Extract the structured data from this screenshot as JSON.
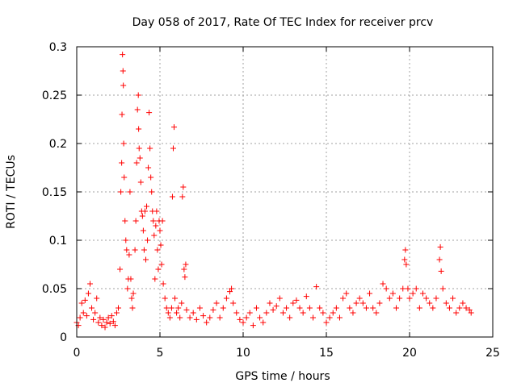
{
  "chart_data": {
    "type": "scatter",
    "title": "Day 058 of 2017, Rate Of TEC Index for receiver prcv",
    "xlabel": "GPS time / hours",
    "ylabel": "ROTI / TECUs",
    "xlim": [
      0,
      25
    ],
    "ylim": [
      0,
      0.3
    ],
    "x_ticks": [
      0,
      5,
      10,
      15,
      20,
      25
    ],
    "x_tick_labels": [
      "0",
      "5",
      "10",
      "15",
      "20",
      "25"
    ],
    "y_ticks": [
      0,
      0.05,
      0.1,
      0.15,
      0.2,
      0.25,
      0.3
    ],
    "y_tick_labels": [
      "0",
      "0.05",
      "0.1",
      "0.15",
      "0.2",
      "0.25",
      "0.3"
    ],
    "grid": true,
    "marker": "+",
    "color": "#ff0000",
    "series": [
      {
        "name": "ROTI",
        "points": [
          [
            0.0,
            0.015
          ],
          [
            0.1,
            0.012
          ],
          [
            0.2,
            0.02
          ],
          [
            0.3,
            0.035
          ],
          [
            0.4,
            0.025
          ],
          [
            0.5,
            0.038
          ],
          [
            0.6,
            0.022
          ],
          [
            0.7,
            0.045
          ],
          [
            0.8,
            0.055
          ],
          [
            0.9,
            0.03
          ],
          [
            1.0,
            0.018
          ],
          [
            1.1,
            0.025
          ],
          [
            1.2,
            0.04
          ],
          [
            1.3,
            0.015
          ],
          [
            1.4,
            0.02
          ],
          [
            1.5,
            0.012
          ],
          [
            1.6,
            0.018
          ],
          [
            1.7,
            0.01
          ],
          [
            1.8,
            0.015
          ],
          [
            1.9,
            0.02
          ],
          [
            2.0,
            0.014
          ],
          [
            2.1,
            0.022
          ],
          [
            2.2,
            0.016
          ],
          [
            2.3,
            0.012
          ],
          [
            2.4,
            0.025
          ],
          [
            2.5,
            0.03
          ],
          [
            2.6,
            0.07
          ],
          [
            2.65,
            0.15
          ],
          [
            2.7,
            0.18
          ],
          [
            2.72,
            0.23
          ],
          [
            2.75,
            0.292
          ],
          [
            2.78,
            0.275
          ],
          [
            2.8,
            0.26
          ],
          [
            2.82,
            0.2
          ],
          [
            2.85,
            0.165
          ],
          [
            2.9,
            0.12
          ],
          [
            2.95,
            0.1
          ],
          [
            3.0,
            0.09
          ],
          [
            3.05,
            0.05
          ],
          [
            3.1,
            0.06
          ],
          [
            3.15,
            0.085
          ],
          [
            3.2,
            0.15
          ],
          [
            3.25,
            0.06
          ],
          [
            3.3,
            0.04
          ],
          [
            3.35,
            0.03
          ],
          [
            3.4,
            0.045
          ],
          [
            3.5,
            0.09
          ],
          [
            3.55,
            0.12
          ],
          [
            3.6,
            0.18
          ],
          [
            3.65,
            0.235
          ],
          [
            3.7,
            0.25
          ],
          [
            3.72,
            0.215
          ],
          [
            3.75,
            0.195
          ],
          [
            3.8,
            0.185
          ],
          [
            3.85,
            0.16
          ],
          [
            3.9,
            0.13
          ],
          [
            3.95,
            0.125
          ],
          [
            4.0,
            0.11
          ],
          [
            4.05,
            0.09
          ],
          [
            4.1,
            0.13
          ],
          [
            4.15,
            0.08
          ],
          [
            4.2,
            0.135
          ],
          [
            4.25,
            0.1
          ],
          [
            4.3,
            0.175
          ],
          [
            4.35,
            0.232
          ],
          [
            4.4,
            0.195
          ],
          [
            4.45,
            0.165
          ],
          [
            4.5,
            0.15
          ],
          [
            4.55,
            0.13
          ],
          [
            4.6,
            0.12
          ],
          [
            4.65,
            0.105
          ],
          [
            4.7,
            0.06
          ],
          [
            4.75,
            0.115
          ],
          [
            4.8,
            0.13
          ],
          [
            4.85,
            0.09
          ],
          [
            4.9,
            0.07
          ],
          [
            4.95,
            0.12
          ],
          [
            5.0,
            0.11
          ],
          [
            5.05,
            0.095
          ],
          [
            5.1,
            0.075
          ],
          [
            5.15,
            0.12
          ],
          [
            5.2,
            0.055
          ],
          [
            5.3,
            0.04
          ],
          [
            5.4,
            0.03
          ],
          [
            5.5,
            0.025
          ],
          [
            5.6,
            0.02
          ],
          [
            5.7,
            0.03
          ],
          [
            5.75,
            0.145
          ],
          [
            5.8,
            0.195
          ],
          [
            5.85,
            0.217
          ],
          [
            5.9,
            0.04
          ],
          [
            6.0,
            0.025
          ],
          [
            6.1,
            0.03
          ],
          [
            6.2,
            0.02
          ],
          [
            6.3,
            0.035
          ],
          [
            6.35,
            0.145
          ],
          [
            6.4,
            0.155
          ],
          [
            6.45,
            0.07
          ],
          [
            6.5,
            0.062
          ],
          [
            6.55,
            0.075
          ],
          [
            6.6,
            0.028
          ],
          [
            6.8,
            0.02
          ],
          [
            7.0,
            0.025
          ],
          [
            7.2,
            0.018
          ],
          [
            7.4,
            0.03
          ],
          [
            7.6,
            0.022
          ],
          [
            7.8,
            0.015
          ],
          [
            8.0,
            0.02
          ],
          [
            8.2,
            0.028
          ],
          [
            8.4,
            0.035
          ],
          [
            8.6,
            0.02
          ],
          [
            8.8,
            0.03
          ],
          [
            9.0,
            0.04
          ],
          [
            9.2,
            0.047
          ],
          [
            9.3,
            0.05
          ],
          [
            9.4,
            0.035
          ],
          [
            9.6,
            0.025
          ],
          [
            9.8,
            0.018
          ],
          [
            10.0,
            0.015
          ],
          [
            10.2,
            0.02
          ],
          [
            10.4,
            0.025
          ],
          [
            10.6,
            0.012
          ],
          [
            10.8,
            0.03
          ],
          [
            11.0,
            0.02
          ],
          [
            11.2,
            0.015
          ],
          [
            11.4,
            0.025
          ],
          [
            11.6,
            0.035
          ],
          [
            11.8,
            0.028
          ],
          [
            12.0,
            0.032
          ],
          [
            12.2,
            0.04
          ],
          [
            12.4,
            0.025
          ],
          [
            12.6,
            0.03
          ],
          [
            12.8,
            0.02
          ],
          [
            13.0,
            0.035
          ],
          [
            13.2,
            0.038
          ],
          [
            13.4,
            0.03
          ],
          [
            13.6,
            0.025
          ],
          [
            13.8,
            0.042
          ],
          [
            14.0,
            0.03
          ],
          [
            14.2,
            0.02
          ],
          [
            14.4,
            0.052
          ],
          [
            14.6,
            0.03
          ],
          [
            14.8,
            0.025
          ],
          [
            15.0,
            0.015
          ],
          [
            15.2,
            0.02
          ],
          [
            15.4,
            0.025
          ],
          [
            15.6,
            0.03
          ],
          [
            15.8,
            0.02
          ],
          [
            16.0,
            0.04
          ],
          [
            16.2,
            0.045
          ],
          [
            16.4,
            0.03
          ],
          [
            16.6,
            0.025
          ],
          [
            16.8,
            0.035
          ],
          [
            17.0,
            0.04
          ],
          [
            17.2,
            0.035
          ],
          [
            17.4,
            0.03
          ],
          [
            17.6,
            0.045
          ],
          [
            17.8,
            0.03
          ],
          [
            18.0,
            0.025
          ],
          [
            18.2,
            0.035
          ],
          [
            18.4,
            0.055
          ],
          [
            18.6,
            0.05
          ],
          [
            18.8,
            0.04
          ],
          [
            19.0,
            0.045
          ],
          [
            19.2,
            0.03
          ],
          [
            19.4,
            0.04
          ],
          [
            19.6,
            0.05
          ],
          [
            19.7,
            0.08
          ],
          [
            19.75,
            0.09
          ],
          [
            19.8,
            0.075
          ],
          [
            19.9,
            0.05
          ],
          [
            20.0,
            0.04
          ],
          [
            20.2,
            0.045
          ],
          [
            20.4,
            0.05
          ],
          [
            20.6,
            0.03
          ],
          [
            20.8,
            0.045
          ],
          [
            21.0,
            0.04
          ],
          [
            21.2,
            0.035
          ],
          [
            21.4,
            0.03
          ],
          [
            21.6,
            0.04
          ],
          [
            21.8,
            0.08
          ],
          [
            21.85,
            0.093
          ],
          [
            21.9,
            0.068
          ],
          [
            22.0,
            0.05
          ],
          [
            22.2,
            0.035
          ],
          [
            22.4,
            0.03
          ],
          [
            22.6,
            0.04
          ],
          [
            22.8,
            0.025
          ],
          [
            23.0,
            0.03
          ],
          [
            23.2,
            0.035
          ],
          [
            23.4,
            0.03
          ],
          [
            23.6,
            0.028
          ],
          [
            23.7,
            0.025
          ]
        ]
      }
    ]
  }
}
